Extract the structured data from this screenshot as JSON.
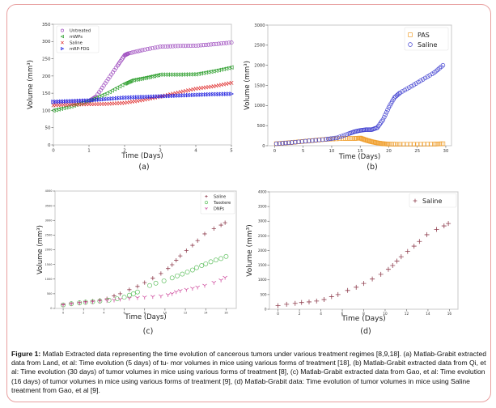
{
  "caption": {
    "label": "Figure 1:",
    "text": " Matlab Extracted data representing the time evolution of cancerous tumors under various treatment regimes [8,9,18]. (a) Matlab-Grabit extracted data from Land, et al: Time evolution (5 days) of tu- mor volumes in mice using various forms of treatment [18], (b) Matlab-Grabit extracted data from Qi, et al: Time evolution (30 days) of tumor volumes in mice using various forms of treatment [8], (c) Matlab-Grabit extracted data from Gao, et al: Time evolution (16 days) of tumor volumes in mice using various forms of treatment [9], (d) Matlab-Grabit data: Time evolution of tumor volumes in mice using Saline treatment from Gao, et al [9]."
  },
  "chart_data": [
    {
      "id": "a",
      "panel_label": "(a)",
      "type": "line",
      "xlabel": "Time (Days)",
      "ylabel": "Volume (mm³)",
      "xlim": [
        0,
        5
      ],
      "ylim": [
        0,
        350
      ],
      "xticks": [
        0,
        1,
        2,
        3,
        4,
        5
      ],
      "yticks": [
        0,
        50,
        100,
        150,
        200,
        250,
        300,
        350
      ],
      "legend_position": "top-left",
      "series": [
        {
          "name": "Untreated",
          "marker": "circle",
          "color": "#a050c0",
          "x": [
            0,
            0.5,
            1.0,
            1.2,
            1.5,
            1.8,
            2.0,
            2.1,
            2.5,
            3.0,
            3.5,
            4.0,
            4.5,
            5.0
          ],
          "y": [
            122,
            124,
            127,
            140,
            185,
            230,
            260,
            265,
            275,
            285,
            287,
            288,
            292,
            297
          ]
        },
        {
          "name": "mWPs",
          "marker": "triangle-left",
          "color": "#30a030",
          "x": [
            0,
            0.5,
            1.0,
            1.5,
            2.0,
            2.2,
            2.6,
            3.0,
            3.5,
            4.0,
            4.5,
            5.0
          ],
          "y": [
            100,
            112,
            128,
            150,
            178,
            187,
            195,
            204,
            204,
            205,
            214,
            225
          ]
        },
        {
          "name": "Saline",
          "marker": "x",
          "color": "#e03030",
          "x": [
            0,
            0.5,
            1.0,
            1.5,
            2.0,
            2.5,
            3.0,
            3.5,
            4.0,
            4.5,
            5.0
          ],
          "y": [
            115,
            117,
            118,
            119,
            122,
            130,
            140,
            152,
            163,
            170,
            180
          ]
        },
        {
          "name": "mRP-FDG",
          "marker": "triangle-right",
          "color": "#2020e0",
          "x": [
            0,
            0.5,
            1.0,
            1.5,
            2.0,
            2.5,
            3.0,
            3.5,
            4.0,
            4.5,
            5.0
          ],
          "y": [
            125,
            127,
            129,
            133,
            137,
            139,
            141,
            143,
            145,
            147,
            148
          ]
        }
      ]
    },
    {
      "id": "b",
      "panel_label": "(b)",
      "type": "line",
      "xlabel": "Time (Days)",
      "ylabel": "Volume (mm³)",
      "xlim": [
        -1.2,
        31
      ],
      "ylim": [
        0,
        3000
      ],
      "xticks": [
        0,
        5,
        10,
        15,
        20,
        25,
        30
      ],
      "yticks": [
        0,
        500,
        1000,
        1500,
        2000,
        2500,
        3000
      ],
      "legend_position": "top-right",
      "series": [
        {
          "name": "PAS",
          "marker": "square",
          "color": "#f0a030",
          "x": [
            0.3,
            3,
            6,
            9,
            12,
            14,
            15,
            16,
            17,
            18,
            19,
            20,
            22,
            25,
            28,
            29.5
          ],
          "y": [
            50,
            80,
            120,
            160,
            180,
            180,
            190,
            140,
            100,
            70,
            50,
            40,
            35,
            35,
            40,
            50
          ]
        },
        {
          "name": "Saline",
          "marker": "circle",
          "color": "#4040d0",
          "x": [
            0.3,
            3,
            6,
            9,
            11,
            13,
            14,
            15,
            16,
            17,
            18,
            19,
            20,
            21,
            22,
            24,
            26,
            28,
            29.5
          ],
          "y": [
            50,
            80,
            120,
            160,
            200,
            300,
            350,
            380,
            400,
            400,
            450,
            650,
            950,
            1200,
            1320,
            1480,
            1650,
            1820,
            2000
          ]
        }
      ]
    },
    {
      "id": "c",
      "panel_label": "(c)",
      "type": "scatter",
      "xlabel": "Time (Days)",
      "ylabel": "Volume (mm³)",
      "xlim": [
        -0.8,
        17
      ],
      "ylim": [
        0,
        4000
      ],
      "xticks": [
        0,
        2,
        4,
        6,
        8,
        10,
        12,
        14,
        16
      ],
      "yticks": [
        0,
        500,
        1000,
        1500,
        2000,
        2500,
        3000,
        3500,
        4000
      ],
      "legend_position": "top-right",
      "series": [
        {
          "name": "Saline",
          "marker": "plus",
          "color": "#904050",
          "x": [
            0,
            0.8,
            1.6,
            2.2,
            2.9,
            3.6,
            4.3,
            5.0,
            5.6,
            6.5,
            7.3,
            8.0,
            8.8,
            9.6,
            10.3,
            10.7,
            11.1,
            11.5,
            12.1,
            12.7,
            13.2,
            13.9,
            14.8,
            15.5,
            15.9
          ],
          "y": [
            120,
            170,
            200,
            230,
            250,
            280,
            330,
            430,
            500,
            640,
            750,
            880,
            1030,
            1190,
            1360,
            1490,
            1640,
            1790,
            1970,
            2150,
            2310,
            2540,
            2720,
            2840,
            2920
          ]
        },
        {
          "name": "Taxotere",
          "marker": "circle",
          "color": "#60c060",
          "x": [
            0,
            0.8,
            1.6,
            2.2,
            2.9,
            3.6,
            4.5,
            5.3,
            6.0,
            6.5,
            6.9,
            7.3,
            8.5,
            9.1,
            9.9,
            10.7,
            11.2,
            11.7,
            12.2,
            12.7,
            13.1,
            13.6,
            14.0,
            14.5,
            15.0,
            15.5,
            16.0
          ],
          "y": [
            120,
            160,
            190,
            210,
            230,
            250,
            280,
            330,
            380,
            450,
            500,
            560,
            780,
            860,
            940,
            1040,
            1110,
            1170,
            1240,
            1310,
            1390,
            1460,
            1520,
            1590,
            1650,
            1700,
            1770
          ]
        },
        {
          "name": "DNPs",
          "marker": "tri-down",
          "color": "#d050a0",
          "x": [
            0,
            0.8,
            1.6,
            2.2,
            2.9,
            3.6,
            4.3,
            5.0,
            5.6,
            6.5,
            7.3,
            8.0,
            8.8,
            9.6,
            10.3,
            10.7,
            11.1,
            11.5,
            12.1,
            12.7,
            13.2,
            13.9,
            14.8,
            15.5,
            15.9
          ],
          "y": [
            120,
            150,
            180,
            200,
            220,
            240,
            260,
            280,
            310,
            340,
            360,
            380,
            400,
            420,
            460,
            500,
            560,
            600,
            640,
            680,
            720,
            780,
            880,
            960,
            1050
          ]
        }
      ]
    },
    {
      "id": "d",
      "panel_label": "(d)",
      "type": "scatter",
      "xlabel": "Time (Days)",
      "ylabel": "Volume (mm³)",
      "xlim": [
        -0.8,
        16.8
      ],
      "ylim": [
        0,
        4000
      ],
      "xticks": [
        0,
        2,
        4,
        6,
        8,
        10,
        12,
        14,
        16
      ],
      "yticks": [
        0,
        500,
        1000,
        1500,
        2000,
        2500,
        3000,
        3500,
        4000
      ],
      "legend_position": "top-right",
      "series": [
        {
          "name": "Saline",
          "marker": "plus",
          "color": "#904050",
          "x": [
            0,
            0.8,
            1.6,
            2.2,
            2.9,
            3.6,
            4.3,
            5.0,
            5.6,
            6.5,
            7.3,
            8.0,
            8.8,
            9.6,
            10.3,
            10.7,
            11.1,
            11.5,
            12.1,
            12.7,
            13.2,
            13.9,
            14.8,
            15.5,
            15.9
          ],
          "y": [
            120,
            170,
            200,
            230,
            250,
            280,
            330,
            430,
            500,
            640,
            750,
            880,
            1030,
            1190,
            1360,
            1490,
            1640,
            1790,
            1970,
            2150,
            2310,
            2540,
            2720,
            2840,
            2920
          ]
        }
      ]
    }
  ]
}
